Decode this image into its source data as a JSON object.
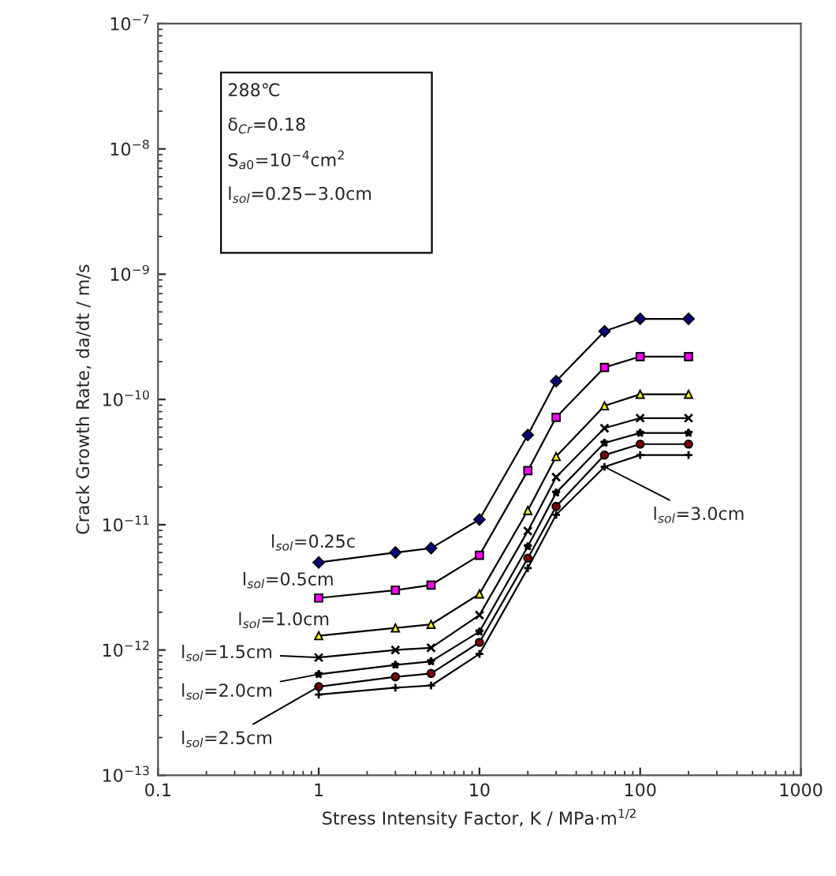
{
  "chart_data": {
    "type": "line",
    "xlabel": "Stress Intensity Factor, K / MPa·m$^{1/2}$",
    "ylabel": "Crack Growth Rate, da/dt / m/s",
    "x": [
      1,
      3,
      5,
      10,
      20,
      30,
      60,
      100,
      200
    ],
    "series": [
      {
        "name": "l$_{sol}$=0.25c",
        "color": "#000080",
        "marker": "diamond",
        "values": [
          5e-12,
          6e-12,
          6.5e-12,
          1.1e-11,
          5.2e-11,
          1.4e-10,
          3.5e-10,
          4.4e-10,
          4.4e-10
        ]
      },
      {
        "name": "l$_{sol}$=0.5cm",
        "color": "#ff00ff",
        "marker": "square",
        "values": [
          2.6e-12,
          3e-12,
          3.3e-12,
          5.7e-12,
          2.7e-11,
          7.2e-11,
          1.8e-10,
          2.2e-10,
          2.2e-10
        ]
      },
      {
        "name": "l$_{sol}$=1.0cm",
        "color": "#ffff00",
        "marker": "triangle",
        "values": [
          1.3e-12,
          1.5e-12,
          1.6e-12,
          2.8e-12,
          1.3e-11,
          3.5e-11,
          8.9e-11,
          1.1e-10,
          1.1e-10
        ]
      },
      {
        "name": "l$_{sol}$=1.5cm",
        "color": "#000000",
        "marker": "cross",
        "values": [
          8.7e-13,
          1e-12,
          1.04e-12,
          1.9e-12,
          8.9e-12,
          2.4e-11,
          5.9e-11,
          7.1e-11,
          7.1e-11
        ]
      },
      {
        "name": "l$_{sol}$=2.0cm",
        "color": "#000000",
        "marker": "star",
        "values": [
          6.4e-13,
          7.6e-13,
          8.1e-13,
          1.4e-12,
          6.7e-12,
          1.8e-11,
          4.5e-11,
          5.4e-11,
          5.4e-11
        ]
      },
      {
        "name": "l$_{sol}$=2.5cm",
        "color": "#800000",
        "marker": "circle",
        "values": [
          5.1e-13,
          6.1e-13,
          6.5e-13,
          1.15e-12,
          5.4e-12,
          1.4e-11,
          3.6e-11,
          4.4e-11,
          4.4e-11
        ]
      },
      {
        "name": "l$_{sol}$=3.0cm",
        "color": "#000000",
        "marker": "plus",
        "values": [
          4.4e-13,
          5e-13,
          5.2e-13,
          9.3e-13,
          4.5e-12,
          1.2e-11,
          2.9e-11,
          3.6e-11,
          3.6e-11
        ]
      }
    ],
    "log": "xy",
    "xlim": [
      0.1,
      1000
    ],
    "xticks": [
      0.1,
      1,
      10,
      100,
      1000
    ],
    "ylim": [
      1e-13,
      1e-07
    ],
    "yticks": [
      {
        "value": 1e-13,
        "label": "10$^{−13}$"
      },
      {
        "value": 1e-12,
        "label": "10$^{−12}$"
      },
      {
        "value": 1e-11,
        "label": "10$^{−11}$"
      },
      {
        "value": 1e-10,
        "label": "10$^{−10}$"
      },
      {
        "value": 1e-09,
        "label": "10$^{−9}$"
      },
      {
        "value": 1e-08,
        "label": "10$^{−8}$"
      },
      {
        "value": 1e-07,
        "label": "10$^{−7}$"
      }
    ],
    "grid": false,
    "legend": "bottom left",
    "line_style": "solid",
    "annotations": [
      "288℃",
      "δ$_{Cr}$=0.18",
      "S$_{a0}$=10$^{−4}$cm$^{2}$",
      "l$_{sol}$=0.25−3.0cm"
    ]
  }
}
